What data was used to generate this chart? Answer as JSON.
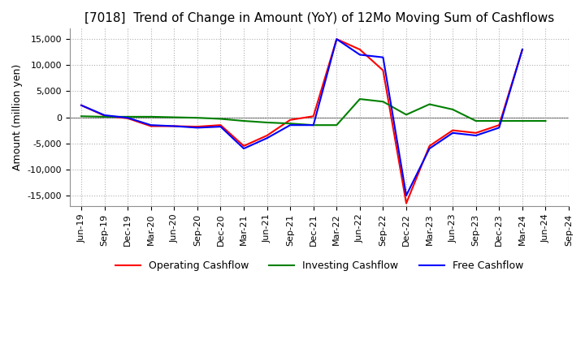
{
  "title": "[7018]  Trend of Change in Amount (YoY) of 12Mo Moving Sum of Cashflows",
  "ylabel": "Amount (million yen)",
  "ylim": [
    -17000,
    17000
  ],
  "yticks": [
    -15000,
    -10000,
    -5000,
    0,
    5000,
    10000,
    15000
  ],
  "x_labels": [
    "Jun-19",
    "Sep-19",
    "Dec-19",
    "Mar-20",
    "Jun-20",
    "Sep-20",
    "Dec-20",
    "Mar-21",
    "Jun-21",
    "Sep-21",
    "Dec-21",
    "Mar-22",
    "Jun-22",
    "Sep-22",
    "Dec-22",
    "Mar-23",
    "Jun-23",
    "Sep-23",
    "Dec-23",
    "Mar-24",
    "Jun-24",
    "Sep-24"
  ],
  "operating": [
    2300,
    300,
    -200,
    -1700,
    -1700,
    -1800,
    -1500,
    -5500,
    -3500,
    -500,
    200,
    15000,
    13000,
    9000,
    -16500,
    -5500,
    -2500,
    -3000,
    -1500,
    13000,
    null,
    null
  ],
  "investing": [
    200,
    100,
    100,
    100,
    0,
    -100,
    -300,
    -700,
    -1000,
    -1200,
    -1500,
    -1500,
    3500,
    3000,
    500,
    2500,
    1500,
    -700,
    -700,
    -700,
    -700,
    null
  ],
  "free": [
    2300,
    400,
    -100,
    -1500,
    -1700,
    -2000,
    -1800,
    -6000,
    -4000,
    -1500,
    -1500,
    15000,
    12000,
    11500,
    -15000,
    -6000,
    -3000,
    -3500,
    -2000,
    13000,
    null,
    null
  ],
  "operating_color": "#ff0000",
  "investing_color": "#008000",
  "free_color": "#0000ff",
  "background_color": "#ffffff",
  "grid_color": "#b0b0b0",
  "title_fontsize": 11,
  "legend_fontsize": 9,
  "tick_fontsize": 8
}
